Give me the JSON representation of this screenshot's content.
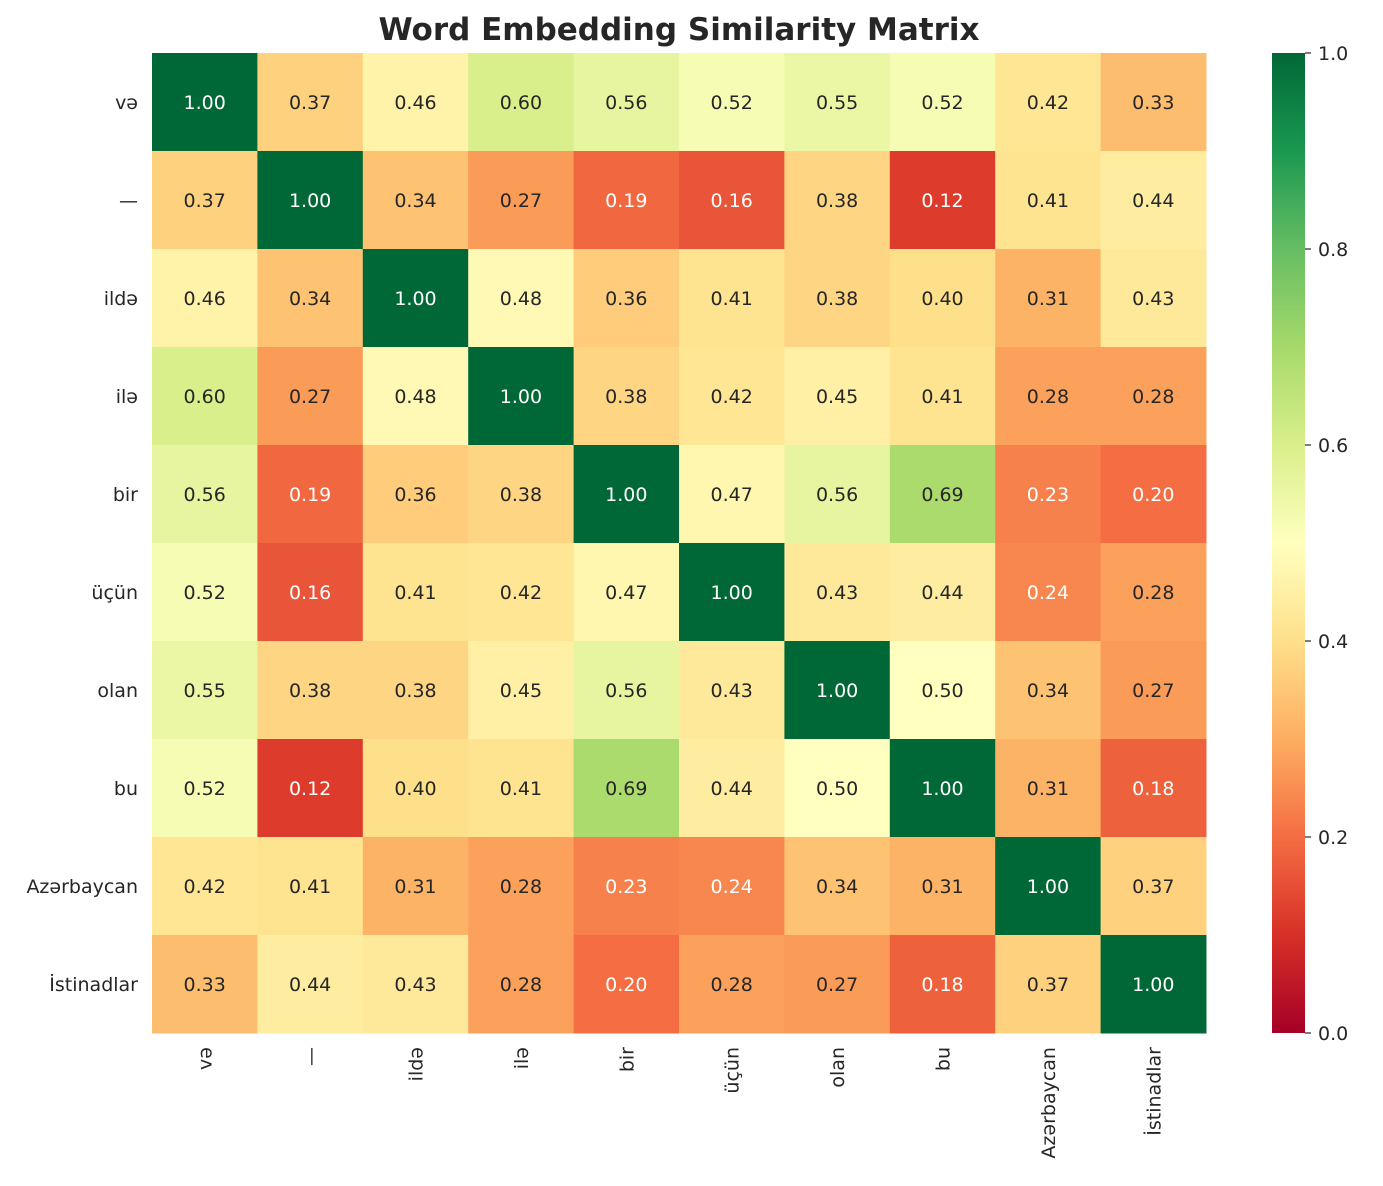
{
  "chart_data": {
    "type": "heatmap",
    "title": "Word Embedding Similarity Matrix",
    "xlabel": "",
    "ylabel": "",
    "colormap": "RdYlGn",
    "colorbar": {
      "range": [
        0.0,
        1.0
      ],
      "ticks": [
        "0.0",
        "0.2",
        "0.4",
        "0.6",
        "0.8",
        "1.0"
      ]
    },
    "labels": [
      "və",
      "—",
      "ildə",
      "ilə",
      "bir",
      "üçün",
      "olan",
      "bu",
      "Azərbaycan",
      "İstinadlar"
    ],
    "values": [
      [
        1.0,
        0.37,
        0.46,
        0.6,
        0.56,
        0.52,
        0.55,
        0.52,
        0.42,
        0.33
      ],
      [
        0.37,
        1.0,
        0.34,
        0.27,
        0.19,
        0.16,
        0.38,
        0.12,
        0.41,
        0.44
      ],
      [
        0.46,
        0.34,
        1.0,
        0.48,
        0.36,
        0.41,
        0.38,
        0.4,
        0.31,
        0.43
      ],
      [
        0.6,
        0.27,
        0.48,
        1.0,
        0.38,
        0.42,
        0.45,
        0.41,
        0.28,
        0.28
      ],
      [
        0.56,
        0.19,
        0.36,
        0.38,
        1.0,
        0.47,
        0.56,
        0.69,
        0.23,
        0.2
      ],
      [
        0.52,
        0.16,
        0.41,
        0.42,
        0.47,
        1.0,
        0.43,
        0.44,
        0.24,
        0.28
      ],
      [
        0.55,
        0.38,
        0.38,
        0.45,
        0.56,
        0.43,
        1.0,
        0.5,
        0.34,
        0.27
      ],
      [
        0.52,
        0.12,
        0.4,
        0.41,
        0.69,
        0.44,
        0.5,
        1.0,
        0.31,
        0.18
      ],
      [
        0.42,
        0.41,
        0.31,
        0.28,
        0.23,
        0.24,
        0.34,
        0.31,
        1.0,
        0.37
      ],
      [
        0.33,
        0.44,
        0.43,
        0.28,
        0.2,
        0.28,
        0.27,
        0.18,
        0.37,
        1.0
      ]
    ]
  }
}
